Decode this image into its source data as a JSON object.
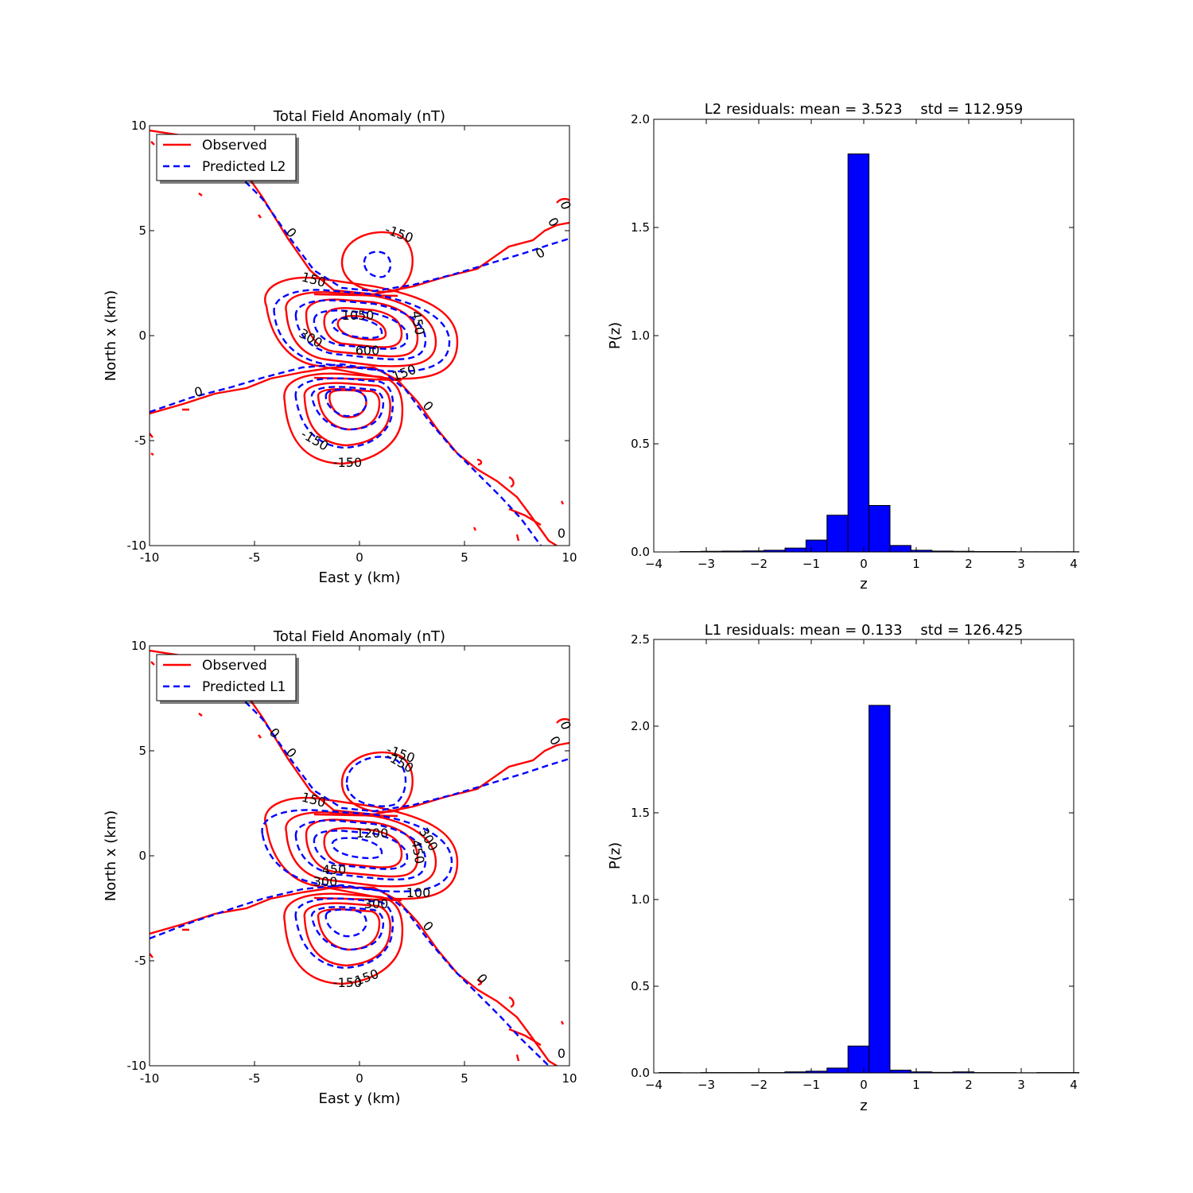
{
  "figure": {
    "background": "#ffffff",
    "observed_color": "#ff0000",
    "predicted_color": "#0000ff",
    "bar_color": "#0000ff"
  },
  "chart_data": [
    {
      "id": "contour-l2",
      "type": "contour",
      "title": "Total Field Anomaly (nT)",
      "xlabel": "East y (km)",
      "ylabel": "North x (km)",
      "xlim": [
        -10,
        10
      ],
      "ylim": [
        -10,
        10
      ],
      "xticks": [
        "-10",
        "-5",
        "0",
        "5",
        "10"
      ],
      "yticks": [
        "-10",
        "-5",
        "0",
        "5",
        "10"
      ],
      "legend": {
        "placement": "upper-left",
        "entries": [
          "Observed",
          "Predicted L2"
        ]
      },
      "series": [
        {
          "name": "Observed",
          "style": "solid",
          "color": "#ff0000"
        },
        {
          "name": "Predicted L2",
          "style": "dashed",
          "color": "#0000ff"
        }
      ],
      "contour_labels": [
        {
          "text": "-150",
          "color": "#ff0000",
          "x": 1.9,
          "y": 4.9
        },
        {
          "text": "0",
          "color": "#ff0000",
          "x": -3.4,
          "y": 5.0
        },
        {
          "text": "0",
          "color": "#ff0000",
          "x": 9.4,
          "y": 6.3
        },
        {
          "text": "0",
          "color": "#ff0000",
          "x": 8.8,
          "y": 5.5
        },
        {
          "text": "0",
          "color": "#0000ff",
          "x": 8.5,
          "y": 4.0
        },
        {
          "text": "150",
          "color": "#ff0000",
          "x": -2.3,
          "y": 2.7
        },
        {
          "text": "1050",
          "color": "#0000ff",
          "x": -0.1,
          "y": 1.0
        },
        {
          "text": "450",
          "color": "#ff0000",
          "x": 2.6,
          "y": 0.6
        },
        {
          "text": "300",
          "color": "#0000ff",
          "x": -2.4,
          "y": -0.1
        },
        {
          "text": "600",
          "color": "#0000ff",
          "x": 0.4,
          "y": -0.7
        },
        {
          "text": "150",
          "color": "#ff0000",
          "x": 2.2,
          "y": -1.8
        },
        {
          "text": "0",
          "color": "#0000ff",
          "x": -7.7,
          "y": -2.7
        },
        {
          "text": "0",
          "color": "#ff0000",
          "x": 3.0,
          "y": -3.4
        },
        {
          "text": "-150",
          "color": "#0000ff",
          "x": -2.3,
          "y": -5.0
        },
        {
          "text": "-150",
          "color": "#ff0000",
          "x": -0.6,
          "y": -6.0
        },
        {
          "text": "0",
          "color": "#ff0000",
          "x": 9.5,
          "y": -9.4
        }
      ]
    },
    {
      "id": "hist-l2",
      "type": "bar",
      "title": "L2 residuals: mean = 3.523    std = 112.959",
      "xlabel": "z",
      "ylabel": "P(z)",
      "xlim": [
        -4,
        4
      ],
      "ylim": [
        0,
        2.0
      ],
      "xticks": [
        "−4",
        "−3",
        "−2",
        "−1",
        "0",
        "1",
        "2",
        "3",
        "4"
      ],
      "yticks": [
        "0.0",
        "0.5",
        "1.0",
        "1.5",
        "2.0"
      ],
      "bin_edges": [
        -3.5,
        -3.1,
        -2.7,
        -2.3,
        -1.9,
        -1.5,
        -1.1,
        -0.7,
        -0.3,
        0.1,
        0.5,
        0.9,
        1.3,
        1.7,
        2.1,
        2.5,
        2.9,
        3.3,
        3.7,
        4.1
      ],
      "values": [
        0.002,
        0.003,
        0.004,
        0.005,
        0.008,
        0.018,
        0.055,
        0.17,
        1.84,
        0.215,
        0.03,
        0.008,
        0.004,
        0.003,
        0.002,
        0.002,
        0.001,
        0.001,
        0.001
      ]
    },
    {
      "id": "contour-l1",
      "type": "contour",
      "title": "Total Field Anomaly (nT)",
      "xlabel": "East y (km)",
      "ylabel": "North x (km)",
      "xlim": [
        -10,
        10
      ],
      "ylim": [
        -10,
        10
      ],
      "xticks": [
        "-10",
        "-5",
        "0",
        "5",
        "10"
      ],
      "yticks": [
        "-10",
        "-5",
        "0",
        "5",
        "10"
      ],
      "legend": {
        "placement": "upper-left",
        "entries": [
          "Observed",
          "Predicted L1"
        ]
      },
      "series": [
        {
          "name": "Observed",
          "style": "solid",
          "color": "#ff0000"
        },
        {
          "name": "Predicted L1",
          "style": "dashed",
          "color": "#0000ff"
        }
      ],
      "contour_labels": [
        {
          "text": "-150",
          "color": "#ff0000",
          "x": 1.9,
          "y": 4.9
        },
        {
          "text": "-150",
          "color": "#0000ff",
          "x": 1.8,
          "y": 4.6
        },
        {
          "text": "0",
          "color": "#0000ff",
          "x": -4.2,
          "y": 5.7
        },
        {
          "text": "0",
          "color": "#ff0000",
          "x": -3.4,
          "y": 5.0
        },
        {
          "text": "0",
          "color": "#ff0000",
          "x": 9.4,
          "y": 6.3
        },
        {
          "text": "0",
          "color": "#ff0000",
          "x": 9.0,
          "y": 5.5
        },
        {
          "text": "150",
          "color": "#0000ff",
          "x": -2.3,
          "y": 2.7
        },
        {
          "text": "1200",
          "color": "#0000ff",
          "x": 0.6,
          "y": 1.1
        },
        {
          "text": "300",
          "color": "#0000ff",
          "x": 3.1,
          "y": 0.7
        },
        {
          "text": "450",
          "color": "#ff0000",
          "x": 2.6,
          "y": 0.3
        },
        {
          "text": "450",
          "color": "#0000ff",
          "x": -1.3,
          "y": -0.7
        },
        {
          "text": "300",
          "color": "#ff0000",
          "x": -1.7,
          "y": -1.3
        },
        {
          "text": "300",
          "color": "#ff0000",
          "x": 0.8,
          "y": -2.3
        },
        {
          "text": "100",
          "color": "#ff0000",
          "x": 2.8,
          "y": -1.8
        },
        {
          "text": "0",
          "color": "#ff0000",
          "x": 3.1,
          "y": -3.4
        },
        {
          "text": "0",
          "color": "#0000ff",
          "x": 5.7,
          "y": -5.9
        },
        {
          "text": "-150",
          "color": "#ff0000",
          "x": -0.6,
          "y": -6.0
        },
        {
          "text": "150",
          "color": "#0000ff",
          "x": 0.4,
          "y": -5.8
        },
        {
          "text": "0",
          "color": "#ff0000",
          "x": 9.5,
          "y": -9.4
        }
      ]
    },
    {
      "id": "hist-l1",
      "type": "bar",
      "title": "L1 residuals: mean = 0.133    std = 126.425",
      "xlabel": "z",
      "ylabel": "P(z)",
      "xlim": [
        -4,
        4
      ],
      "ylim": [
        0,
        2.5
      ],
      "xticks": [
        "−4",
        "−3",
        "−2",
        "−1",
        "0",
        "1",
        "2",
        "3",
        "4"
      ],
      "yticks": [
        "0.0",
        "0.5",
        "1.0",
        "1.5",
        "2.0",
        "2.5"
      ],
      "bin_edges": [
        -3.9,
        -3.5,
        -3.1,
        -2.7,
        -2.3,
        -1.9,
        -1.5,
        -1.1,
        -0.7,
        -0.3,
        0.1,
        0.5,
        0.9,
        1.3,
        1.7,
        2.1,
        2.5,
        2.9,
        3.3,
        3.7,
        4.1
      ],
      "values": [
        0.002,
        0.001,
        0.002,
        0.002,
        0.002,
        0.002,
        0.006,
        0.01,
        0.028,
        0.155,
        2.12,
        0.016,
        0.006,
        0.003,
        0.006,
        0.002,
        0.002,
        0.001,
        0.002,
        0.002
      ]
    }
  ]
}
